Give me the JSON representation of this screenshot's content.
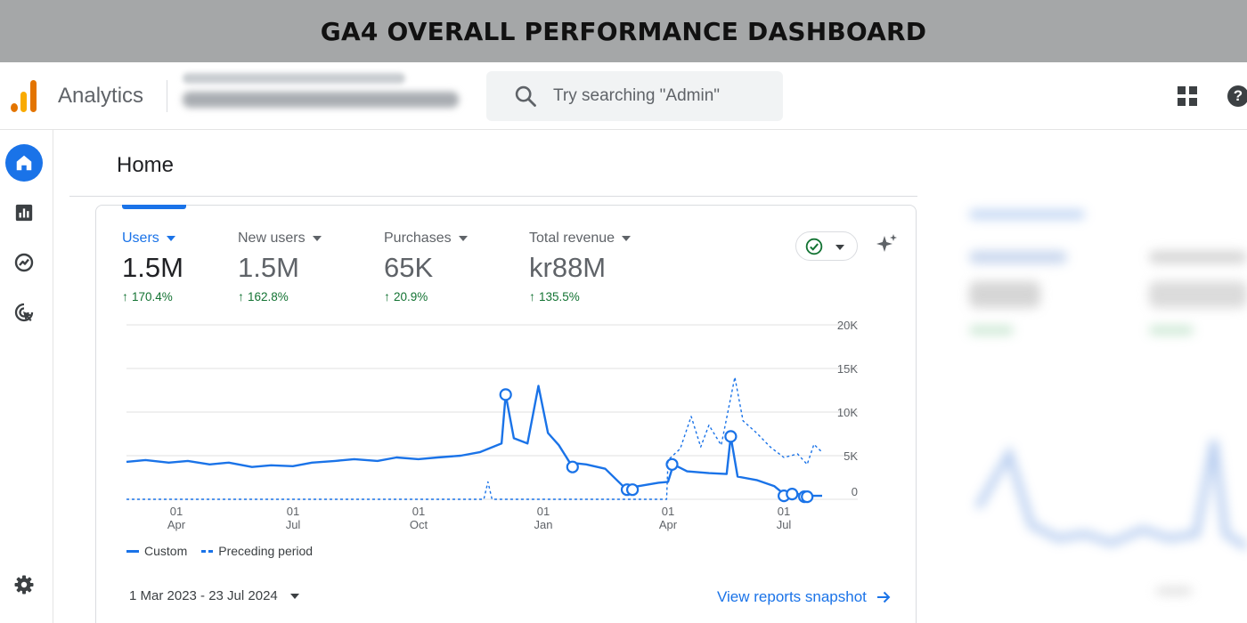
{
  "banner": {
    "title": "GA4 OVERALL PERFORMANCE DASHBOARD"
  },
  "topbar": {
    "app_name": "Analytics",
    "search_placeholder": "Try searching \"Admin\""
  },
  "nav": {
    "icons": [
      "home-icon",
      "reports-icon",
      "explore-icon",
      "advertising-icon",
      "settings-icon"
    ]
  },
  "page": {
    "title": "Home"
  },
  "metrics": [
    {
      "label": "Users",
      "value": "1.5M",
      "change": "170.4%",
      "active": true
    },
    {
      "label": "New users",
      "value": "1.5M",
      "change": "162.8%",
      "active": false
    },
    {
      "label": "Purchases",
      "value": "65K",
      "change": "20.9%",
      "active": false
    },
    {
      "label": "Total revenue",
      "value": "kr88M",
      "change": "135.5%",
      "active": false
    }
  ],
  "legend": {
    "current": "Custom",
    "previous": "Preceding period"
  },
  "date_range": "1 Mar 2023 - 23 Jul 2024",
  "snapshot_link": "View reports snapshot",
  "colors": {
    "accent": "#1a73e8",
    "positive": "#137333",
    "banner": "#a5a7a8"
  },
  "chart_data": {
    "type": "line",
    "y_axis": {
      "ticks": [
        "20K",
        "15K",
        "10K",
        "5K",
        "0"
      ],
      "ylim": [
        0,
        20000
      ]
    },
    "x_axis": {
      "ticks": [
        {
          "day": "01",
          "month": "Apr"
        },
        {
          "day": "01",
          "month": "Jul"
        },
        {
          "day": "01",
          "month": "Oct"
        },
        {
          "day": "01",
          "month": "Jan"
        },
        {
          "day": "01",
          "month": "Apr"
        },
        {
          "day": "01",
          "month": "Jul"
        }
      ],
      "range": [
        "2023-03-01",
        "2024-07-23"
      ]
    },
    "grid": true,
    "legend_position": "bottom-left",
    "series": [
      {
        "name": "Custom",
        "style": "solid",
        "points": [
          [
            "2023-03-01",
            4300
          ],
          [
            "2023-03-15",
            4500
          ],
          [
            "2023-04-01",
            4200
          ],
          [
            "2023-04-15",
            4400
          ],
          [
            "2023-05-01",
            4000
          ],
          [
            "2023-05-15",
            4200
          ],
          [
            "2023-06-01",
            3700
          ],
          [
            "2023-06-15",
            3900
          ],
          [
            "2023-07-01",
            3800
          ],
          [
            "2023-07-15",
            4200
          ],
          [
            "2023-08-01",
            4400
          ],
          [
            "2023-08-15",
            4600
          ],
          [
            "2023-09-01",
            4400
          ],
          [
            "2023-09-15",
            4800
          ],
          [
            "2023-10-01",
            4600
          ],
          [
            "2023-10-15",
            4800
          ],
          [
            "2023-11-01",
            5000
          ],
          [
            "2023-11-15",
            5400
          ],
          [
            "2023-12-01",
            6400
          ],
          [
            "2023-12-04",
            12000
          ],
          [
            "2023-12-10",
            7000
          ],
          [
            "2023-12-20",
            6400
          ],
          [
            "2023-12-28",
            13000
          ],
          [
            "2024-01-04",
            7600
          ],
          [
            "2024-01-12",
            6200
          ],
          [
            "2024-01-20",
            4200
          ],
          [
            "2024-02-01",
            4000
          ],
          [
            "2024-02-15",
            3500
          ],
          [
            "2024-03-01",
            1200
          ],
          [
            "2024-03-10",
            1500
          ],
          [
            "2024-03-25",
            1900
          ],
          [
            "2024-04-01",
            2000
          ],
          [
            "2024-04-05",
            4000
          ],
          [
            "2024-04-15",
            3200
          ],
          [
            "2024-05-01",
            3000
          ],
          [
            "2024-05-14",
            2900
          ],
          [
            "2024-05-17",
            7200
          ],
          [
            "2024-05-22",
            2600
          ],
          [
            "2024-06-05",
            2200
          ],
          [
            "2024-06-18",
            1500
          ],
          [
            "2024-06-25",
            600
          ],
          [
            "2024-07-01",
            800
          ],
          [
            "2024-07-10",
            400
          ],
          [
            "2024-07-23",
            400
          ]
        ],
        "markers": [
          [
            "2023-12-04",
            12000
          ],
          [
            "2024-01-22",
            3700
          ],
          [
            "2024-03-02",
            1100
          ],
          [
            "2024-03-06",
            1100
          ],
          [
            "2024-04-04",
            4000
          ],
          [
            "2024-05-17",
            7200
          ],
          [
            "2024-06-25",
            400
          ],
          [
            "2024-07-01",
            600
          ],
          [
            "2024-07-10",
            300
          ],
          [
            "2024-07-12",
            300
          ]
        ]
      },
      {
        "name": "Preceding period",
        "style": "dashed",
        "points": [
          [
            "2023-03-01",
            0
          ],
          [
            "2023-11-18",
            0
          ],
          [
            "2023-11-21",
            2000
          ],
          [
            "2023-11-24",
            0
          ],
          [
            "2024-03-31",
            0
          ],
          [
            "2024-04-01",
            4500
          ],
          [
            "2024-04-10",
            5800
          ],
          [
            "2024-04-18",
            9500
          ],
          [
            "2024-04-25",
            6000
          ],
          [
            "2024-05-01",
            8500
          ],
          [
            "2024-05-10",
            6200
          ],
          [
            "2024-05-20",
            14000
          ],
          [
            "2024-05-26",
            9000
          ],
          [
            "2024-06-05",
            7600
          ],
          [
            "2024-06-15",
            6000
          ],
          [
            "2024-06-25",
            4800
          ],
          [
            "2024-07-05",
            5200
          ],
          [
            "2024-07-12",
            4000
          ],
          [
            "2024-07-17",
            6300
          ],
          [
            "2024-07-23",
            5400
          ]
        ]
      }
    ]
  }
}
